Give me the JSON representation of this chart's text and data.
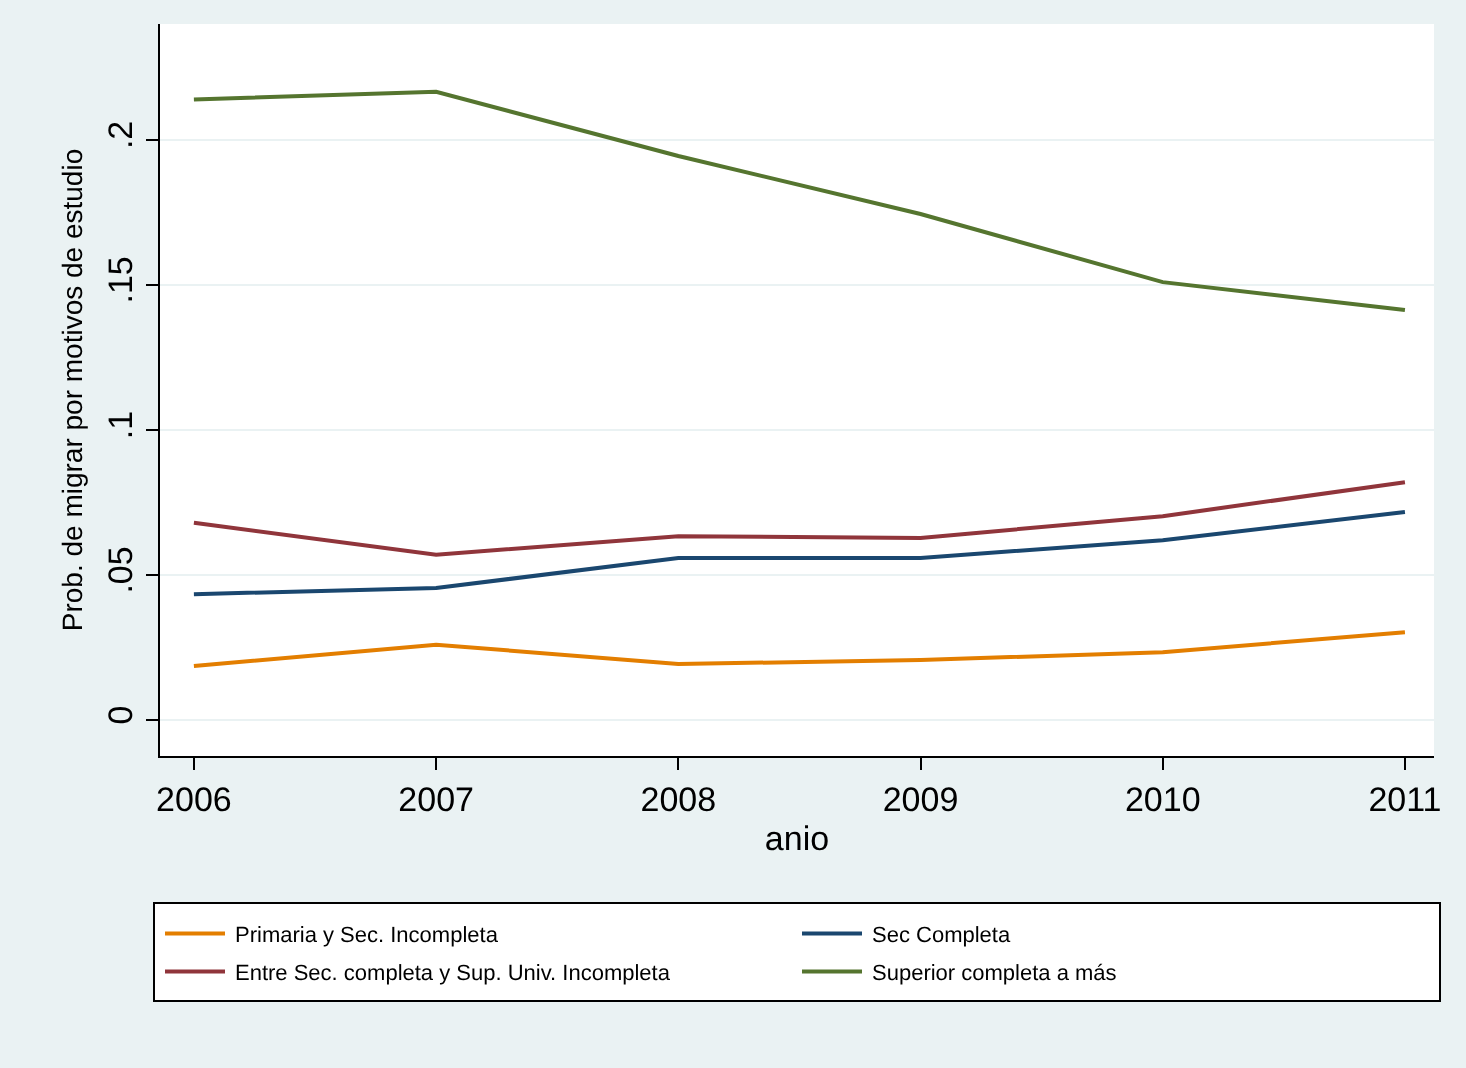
{
  "chart_data": {
    "type": "line",
    "xlabel": "anio",
    "ylabel": "Prob. de migrar por motivos de estudio",
    "x": [
      2006,
      2007,
      2008,
      2009,
      2010,
      2011
    ],
    "series": [
      {
        "name": "Primaria y Sec. Incompleta",
        "color": "#e37e00",
        "values": [
          0.0186,
          0.026,
          0.0193,
          0.0207,
          0.0234,
          0.0303
        ]
      },
      {
        "name": "Sec Completa",
        "color": "#1a476f",
        "values": [
          0.0434,
          0.0455,
          0.0559,
          0.0559,
          0.062,
          0.0717
        ]
      },
      {
        "name": "Entre Sec. completa y Sup. Univ. Incompleta",
        "color": "#90353b",
        "values": [
          0.068,
          0.057,
          0.0634,
          0.0628,
          0.0703,
          0.082
        ]
      },
      {
        "name": "Superior completa a más",
        "color": "#55752f",
        "values": [
          0.214,
          0.2166,
          0.1945,
          0.1745,
          0.151,
          0.1414
        ]
      }
    ],
    "xlim": [
      2005.86,
      2011.12
    ],
    "xticks": [
      2006,
      2007,
      2008,
      2009,
      2010,
      2011
    ],
    "ylim": [
      -0.0124,
      0.24
    ],
    "yticks": [
      {
        "value": 0,
        "label": "0"
      },
      {
        "value": 0.05,
        "label": ".05"
      },
      {
        "value": 0.1,
        "label": ".1"
      },
      {
        "value": 0.15,
        "label": ".15"
      },
      {
        "value": 0.2,
        "label": ".2"
      }
    ],
    "grid": "y",
    "legend": "bottom",
    "marker": "none",
    "line_style": "solid"
  }
}
